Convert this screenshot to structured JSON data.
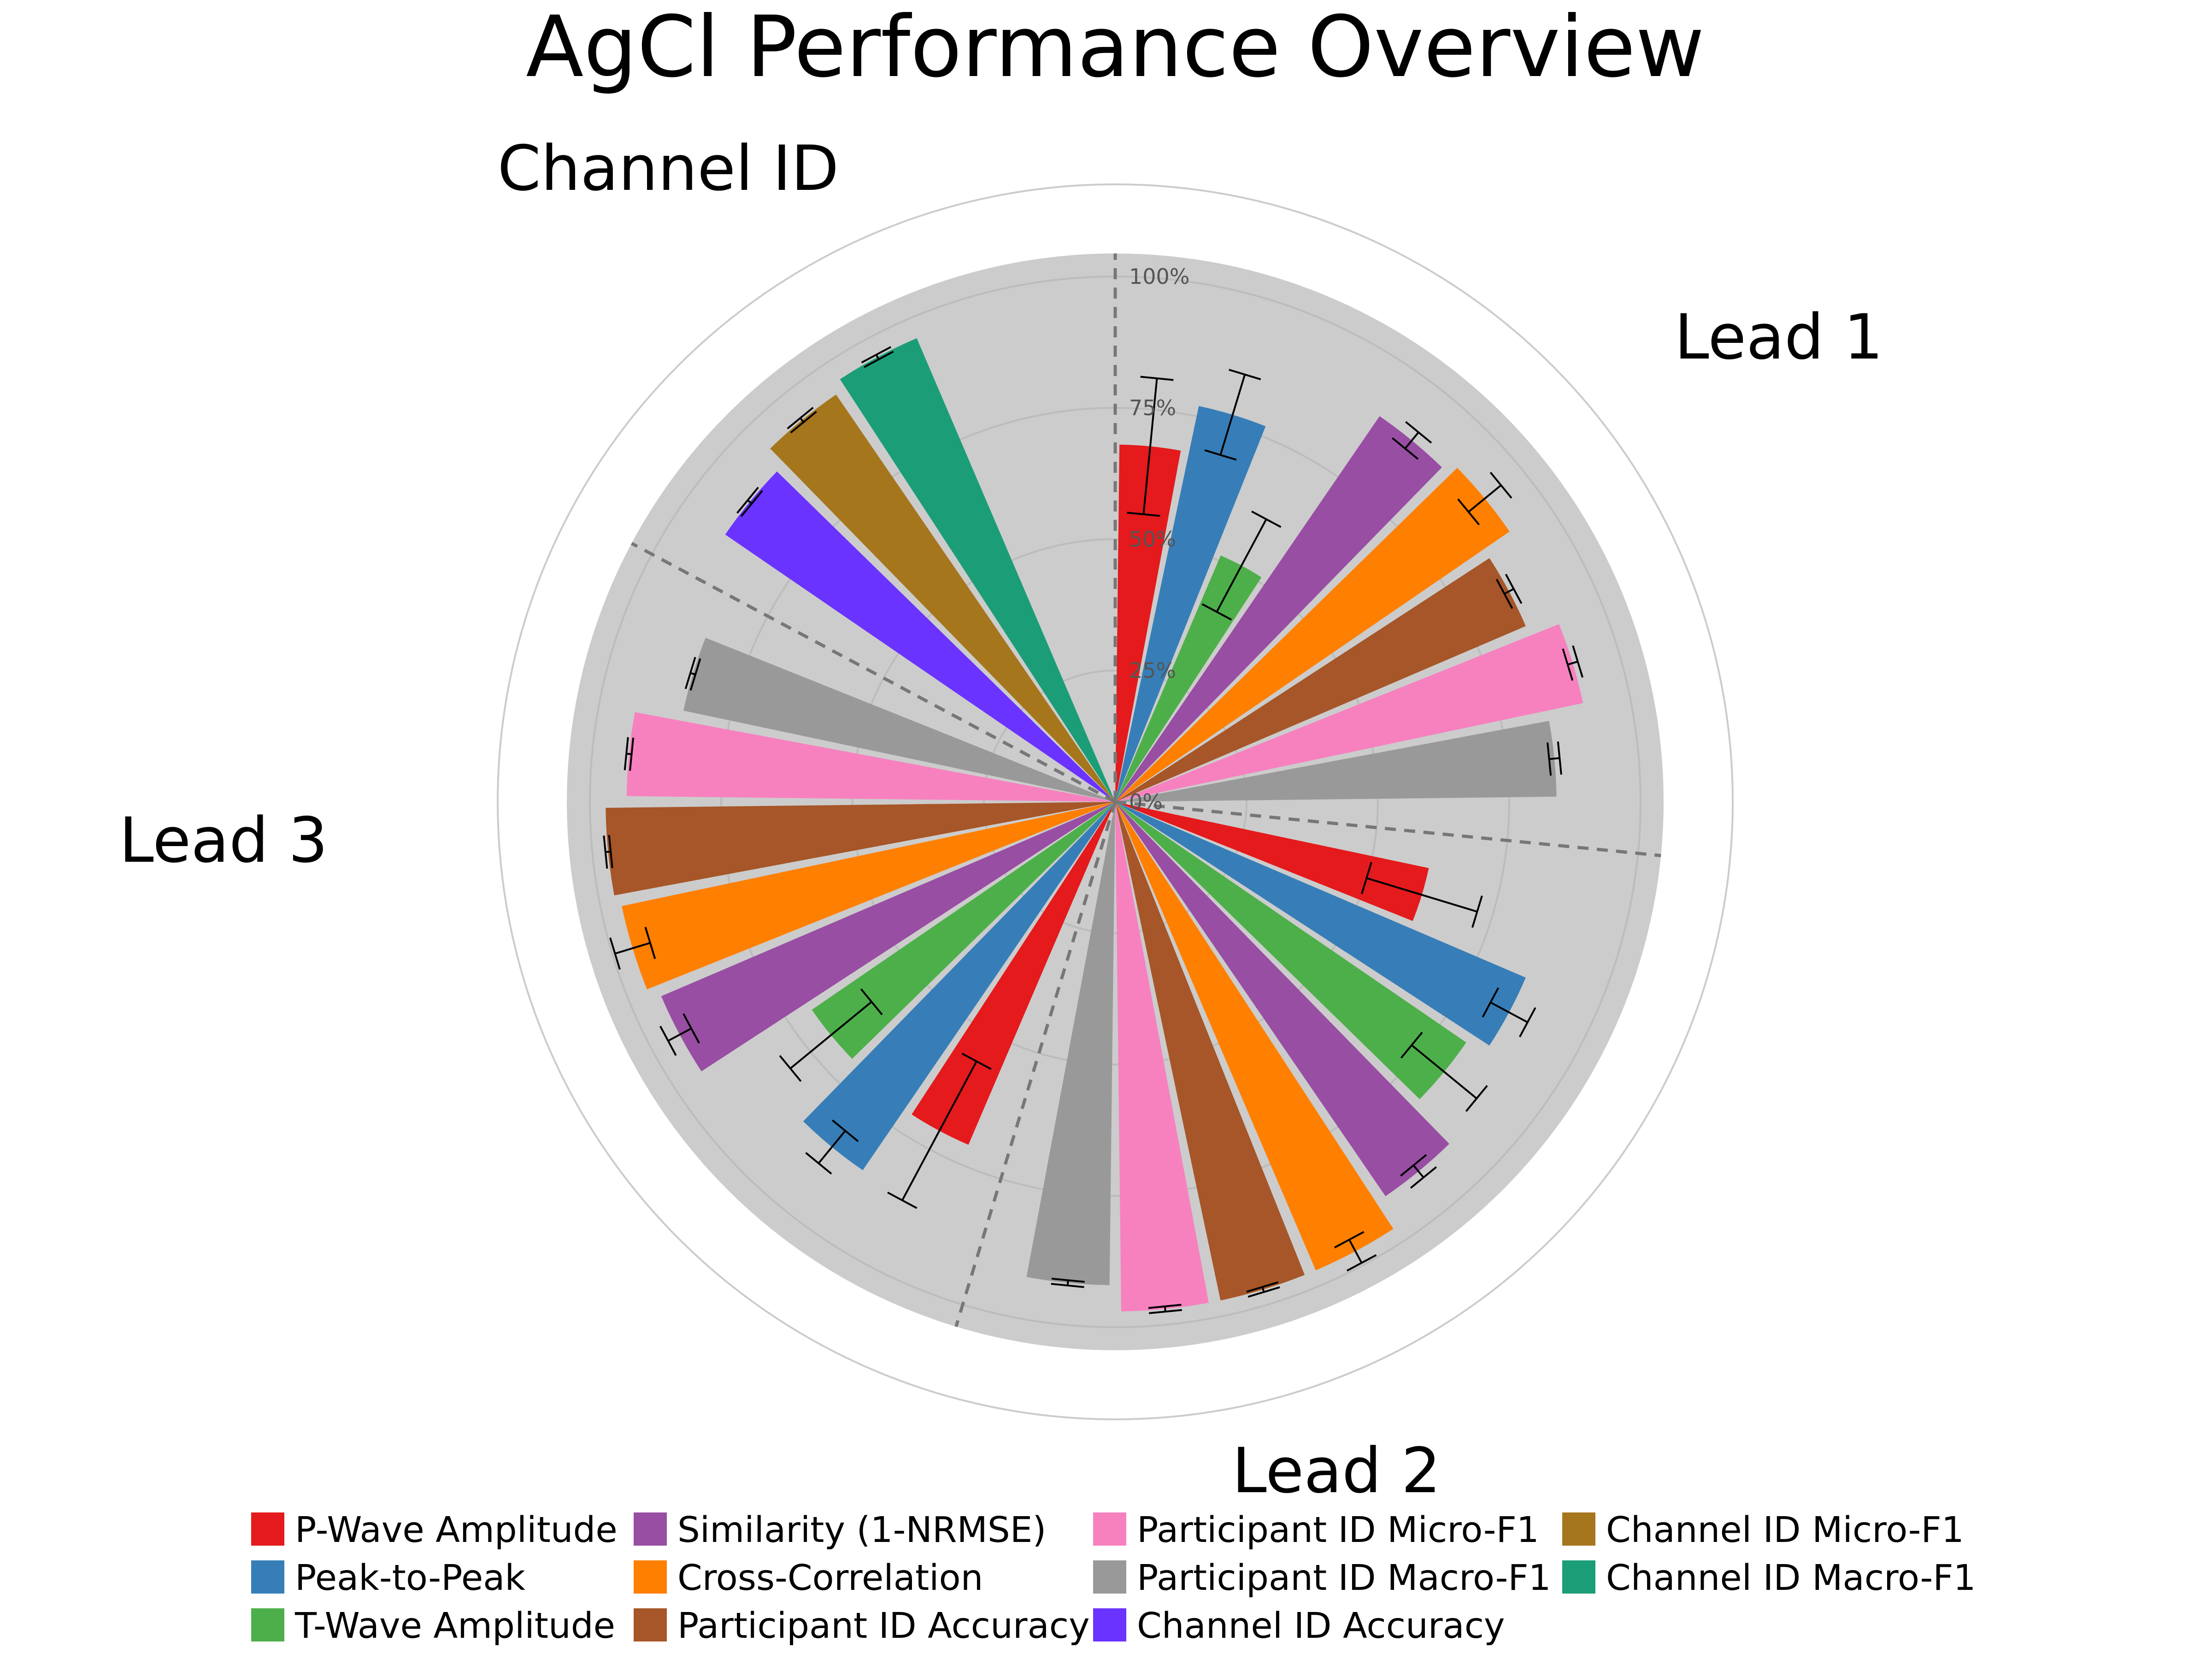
{
  "chart_data": {
    "type": "polar-bar",
    "title": "AgCl Performance Overview",
    "radial_axis": {
      "range": [
        0,
        100
      ],
      "ticks": [
        0,
        25,
        50,
        75,
        100
      ],
      "tick_labels": [
        "0%",
        "25%",
        "50%",
        "75%",
        "100%"
      ]
    },
    "groups": [
      "Lead 1",
      "Lead 2",
      "Lead 3",
      "Channel ID"
    ],
    "metrics": [
      {
        "name": "P-Wave Amplitude",
        "color": "#e41a1c"
      },
      {
        "name": "Peak-to-Peak",
        "color": "#377eb8"
      },
      {
        "name": "T-Wave Amplitude",
        "color": "#4daf4a"
      },
      {
        "name": "Similarity (1-NRMSE)",
        "color": "#984ea3"
      },
      {
        "name": "Cross-Correlation",
        "color": "#ff7f00"
      },
      {
        "name": "Participant ID Accuracy",
        "color": "#a65628"
      },
      {
        "name": "Participant ID Micro-F1",
        "color": "#f781bf"
      },
      {
        "name": "Participant ID Macro-F1",
        "color": "#999999"
      },
      {
        "name": "Channel ID Accuracy",
        "color": "#6a33ff"
      },
      {
        "name": "Channel ID Micro-F1",
        "color": "#a6761d"
      },
      {
        "name": "Channel ID Macro-F1",
        "color": "#1b9e77"
      }
    ],
    "bars": [
      {
        "group": "Lead 1",
        "metric": "P-Wave Amplitude",
        "value": 68,
        "error": 13
      },
      {
        "group": "Lead 1",
        "metric": "Peak-to-Peak",
        "value": 77,
        "error": 8
      },
      {
        "group": "Lead 1",
        "metric": "T-Wave Amplitude",
        "value": 51,
        "error": 10
      },
      {
        "group": "Lead 1",
        "metric": "Similarity (1-NRMSE)",
        "value": 89,
        "error": 2
      },
      {
        "group": "Lead 1",
        "metric": "Cross-Correlation",
        "value": 91,
        "error": 4
      },
      {
        "group": "Lead 1",
        "metric": "Participant ID Accuracy",
        "value": 85,
        "error": 1
      },
      {
        "group": "Lead 1",
        "metric": "Participant ID Micro-F1",
        "value": 91,
        "error": 1
      },
      {
        "group": "Lead 1",
        "metric": "Participant ID Macro-F1",
        "value": 84,
        "error": 1
      },
      {
        "group": "Lead 2",
        "metric": "P-Wave Amplitude",
        "value": 61,
        "error": 11
      },
      {
        "group": "Lead 2",
        "metric": "Peak-to-Peak",
        "value": 85,
        "error": 4
      },
      {
        "group": "Lead 2",
        "metric": "T-Wave Amplitude",
        "value": 81,
        "error": 8
      },
      {
        "group": "Lead 2",
        "metric": "Similarity (1-NRMSE)",
        "value": 91,
        "error": 1.5
      },
      {
        "group": "Lead 2",
        "metric": "Cross-Correlation",
        "value": 97,
        "error": 2.5
      },
      {
        "group": "Lead 2",
        "metric": "Participant ID Accuracy",
        "value": 97,
        "error": 0.5
      },
      {
        "group": "Lead 2",
        "metric": "Participant ID Micro-F1",
        "value": 97,
        "error": 0.5
      },
      {
        "group": "Lead 2",
        "metric": "Participant ID Macro-F1",
        "value": 92,
        "error": 0.5
      },
      {
        "group": "Lead 3",
        "metric": "P-Wave Amplitude",
        "value": 71,
        "error": 15
      },
      {
        "group": "Lead 3",
        "metric": "Peak-to-Peak",
        "value": 85,
        "error": 4
      },
      {
        "group": "Lead 3",
        "metric": "T-Wave Amplitude",
        "value": 70,
        "error": 10
      },
      {
        "group": "Lead 3",
        "metric": "Similarity (1-NRMSE)",
        "value": 94,
        "error": 2.5
      },
      {
        "group": "Lead 3",
        "metric": "Cross-Correlation",
        "value": 96,
        "error": 3.5
      },
      {
        "group": "Lead 3",
        "metric": "Participant ID Accuracy",
        "value": 97,
        "error": 0.5
      },
      {
        "group": "Lead 3",
        "metric": "Participant ID Micro-F1",
        "value": 93,
        "error": 0.5
      },
      {
        "group": "Lead 3",
        "metric": "Participant ID Macro-F1",
        "value": 84,
        "error": 0.5
      },
      {
        "group": "Channel ID",
        "metric": "Channel ID Accuracy",
        "value": 90,
        "error": 0.5
      },
      {
        "group": "Channel ID",
        "metric": "Channel ID Micro-F1",
        "value": 94,
        "error": 0.5
      },
      {
        "group": "Channel ID",
        "metric": "Channel ID Macro-F1",
        "value": 96,
        "error": 0.5
      }
    ],
    "legend": {
      "position": "bottom",
      "columns": 4
    }
  }
}
